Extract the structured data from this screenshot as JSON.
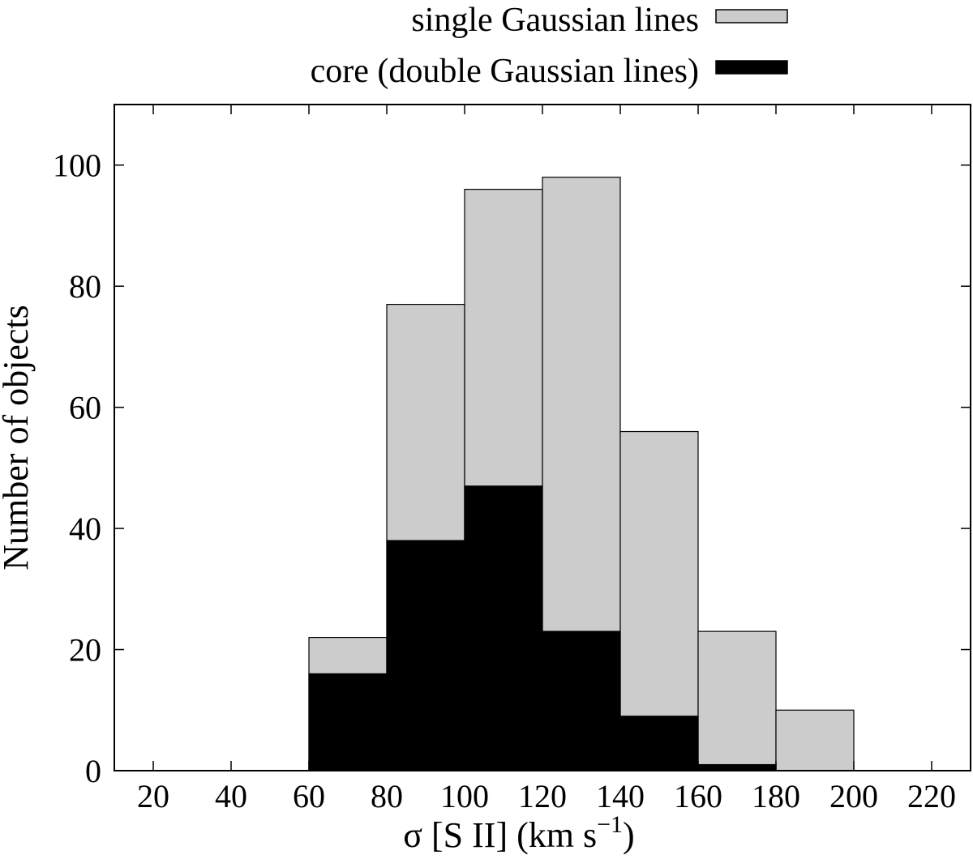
{
  "chart_data": {
    "type": "bar",
    "stacking": "overlay",
    "bin_edges": [
      20,
      40,
      60,
      80,
      100,
      120,
      140,
      160,
      180,
      200,
      220
    ],
    "series": [
      {
        "name": "single Gaussian lines",
        "color": "#cccccc",
        "values": [
          0,
          0,
          22,
          77,
          96,
          98,
          56,
          23,
          10,
          0
        ]
      },
      {
        "name": "core (double Gaussian lines)",
        "color": "#000000",
        "values": [
          0,
          0,
          16,
          38,
          47,
          23,
          9,
          1,
          0,
          0
        ]
      }
    ],
    "xlabel": {
      "main": "σ [S II] (km s",
      "sup": "−1",
      "close": ")"
    },
    "ylabel": "Number of objects",
    "xlim": [
      10,
      230
    ],
    "ylim": [
      0,
      110
    ],
    "xticks": [
      "20",
      "40",
      "60",
      "80",
      "100",
      "120",
      "140",
      "160",
      "180",
      "200",
      "220"
    ],
    "yticks": [
      "0",
      "20",
      "40",
      "60",
      "80",
      "100"
    ],
    "grid": false,
    "legend_position": "top, outside plot"
  }
}
